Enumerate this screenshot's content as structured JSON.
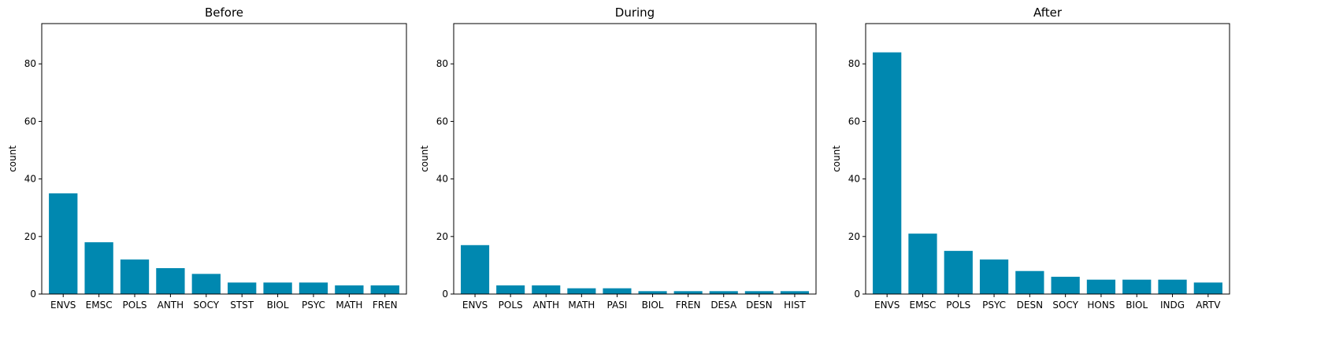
{
  "chart_data": [
    {
      "type": "bar",
      "title": "Before",
      "xlabel": "",
      "ylabel": "count",
      "ylim": [
        0,
        94
      ],
      "yticks": [
        0,
        20,
        40,
        60,
        80
      ],
      "grid": false,
      "bar_color": "#0088b0",
      "categories": [
        "ENVS",
        "EMSC",
        "POLS",
        "ANTH",
        "SOCY",
        "STST",
        "BIOL",
        "PSYC",
        "MATH",
        "FREN"
      ],
      "values": [
        35,
        18,
        12,
        9,
        7,
        4,
        4,
        4,
        3,
        3
      ]
    },
    {
      "type": "bar",
      "title": "During",
      "xlabel": "",
      "ylabel": "count",
      "ylim": [
        0,
        94
      ],
      "yticks": [
        0,
        20,
        40,
        60,
        80
      ],
      "grid": false,
      "bar_color": "#0088b0",
      "categories": [
        "ENVS",
        "POLS",
        "ANTH",
        "MATH",
        "PASI",
        "BIOL",
        "FREN",
        "DESA",
        "DESN",
        "HIST"
      ],
      "values": [
        17,
        3,
        3,
        2,
        2,
        1,
        1,
        1,
        1,
        1
      ]
    },
    {
      "type": "bar",
      "title": "After",
      "xlabel": "",
      "ylabel": "count",
      "ylim": [
        0,
        94
      ],
      "yticks": [
        0,
        20,
        40,
        60,
        80
      ],
      "grid": false,
      "bar_color": "#0088b0",
      "categories": [
        "ENVS",
        "EMSC",
        "POLS",
        "PSYC",
        "DESN",
        "SOCY",
        "HONS",
        "BIOL",
        "INDG",
        "ARTV"
      ],
      "values": [
        84,
        21,
        15,
        12,
        8,
        6,
        5,
        5,
        5,
        4
      ]
    }
  ]
}
